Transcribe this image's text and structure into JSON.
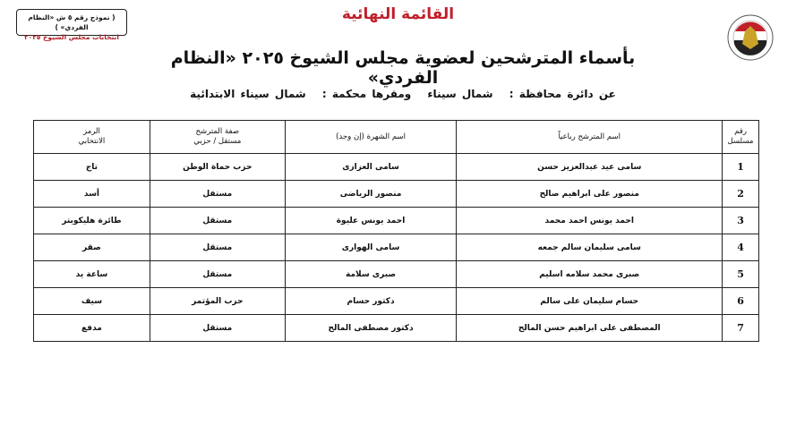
{
  "header": {
    "form_box": {
      "line1": "( نموذج رقم ٥ ش «النظام الفردي» )",
      "line2": "انتخابات مجلس الشيوخ ٢٠٢٥"
    },
    "final_title": "القائمة النهائية",
    "main_title": "بأسماء المترشحين لعضوية مجلس الشيوخ ٢٠٢٥ «النظام الفردي»",
    "subtitle": {
      "governorate_label": "عن دائرة محافظة :",
      "governorate": "شمال سيناء",
      "court_label": "ومقرها محكمة :",
      "court": "شمال سيناء الابتدائية"
    },
    "colors": {
      "title_red": "#c0202a"
    }
  },
  "table": {
    "headers": {
      "serial": [
        "رقم",
        "مسلسل"
      ],
      "name": "اسم المترشح رباعياً",
      "nickname": "اسم الشهرة (إن وجد)",
      "status": [
        "صفة المترشح",
        "مستقل / حزبي"
      ],
      "symbol": [
        "الرمز",
        "الانتخابي"
      ]
    },
    "rows": [
      {
        "num": "1",
        "name": "سامى عيد عبدالعزيز حسن",
        "nickname": "سامى العزازى",
        "status": "حزب حماة الوطن",
        "symbol": "تاج"
      },
      {
        "num": "2",
        "name": "منصور على ابراهيم صالح",
        "nickname": "منصور الرياضى",
        "status": "مستقل",
        "symbol": "أسد"
      },
      {
        "num": "3",
        "name": "احمد يونس احمد محمد",
        "nickname": "احمد يونس عليوة",
        "status": "مستقل",
        "symbol": "طائرة هليكوبتر"
      },
      {
        "num": "4",
        "name": "سامى سليمان سالم جمعه",
        "nickname": "سامى الهوارى",
        "status": "مستقل",
        "symbol": "صقر"
      },
      {
        "num": "5",
        "name": "صبرى محمد سلامه اسليم",
        "nickname": "صبرى سلامة",
        "status": "مستقل",
        "symbol": "ساعة يد"
      },
      {
        "num": "6",
        "name": "حسام سليمان على سالم",
        "nickname": "دكتور حسام",
        "status": "حزب المؤتمر",
        "symbol": "سيف"
      },
      {
        "num": "7",
        "name": "المصطفى على ابراهيم حسن المالح",
        "nickname": "دكتور مصطفى المالح",
        "status": "مستقل",
        "symbol": "مدفع"
      }
    ]
  }
}
